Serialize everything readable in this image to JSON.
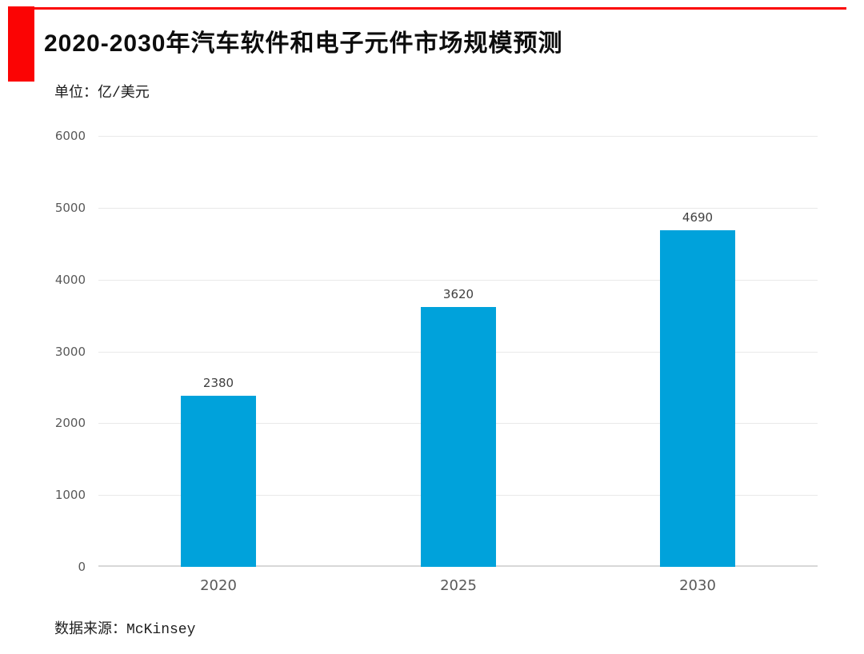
{
  "header": {
    "title": "2020-2030年汽车软件和电子元件市场规模预测",
    "unit_label": "单位：亿/美元"
  },
  "footer": {
    "source_label": "数据来源：McKinsey"
  },
  "colors": {
    "accent_red": "#fb0404",
    "bar_blue": "#00a2db",
    "gridline": "#e9e9e9",
    "zero_axis_line": "#d8d8d8",
    "tick_text": "#595959",
    "value_label_text": "#404040"
  },
  "chart_data": {
    "type": "bar",
    "title": "2020-2030年汽车软件和电子元件市场规模预测",
    "categories": [
      "2020",
      "2025",
      "2030"
    ],
    "values": [
      2380,
      3620,
      4690
    ],
    "data_labels": [
      "2380",
      "3620",
      "4690"
    ],
    "xlabel": "",
    "ylabel": "单位：亿/美元",
    "ylim": [
      0,
      6000
    ],
    "yticks": [
      0,
      1000,
      2000,
      3000,
      4000,
      5000,
      6000
    ],
    "grid": true,
    "legend": false,
    "source": "数据来源：McKinsey"
  }
}
